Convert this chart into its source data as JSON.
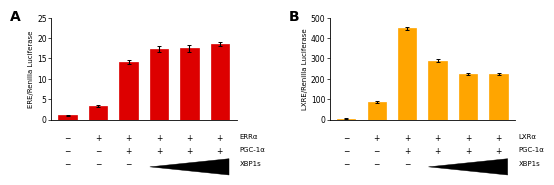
{
  "panel_A": {
    "label": "A",
    "values": [
      1.0,
      3.3,
      14.1,
      17.3,
      17.5,
      18.5
    ],
    "errors": [
      0.15,
      0.25,
      0.45,
      0.7,
      0.9,
      0.55
    ],
    "color": "#dd0000",
    "ylabel": "ERE/Renilla Luciferase",
    "ylim": [
      0,
      25
    ],
    "yticks": [
      0,
      5,
      10,
      15,
      20,
      25
    ],
    "row1": [
      "−",
      "+",
      "+",
      "+",
      "+",
      "+"
    ],
    "row2": [
      "−",
      "−",
      "+",
      "+",
      "+",
      "+"
    ],
    "row3": [
      "−",
      "−",
      "−",
      "",
      "",
      ""
    ],
    "rowlabels": [
      "ERRα",
      "PGC-1α",
      "XBP1s"
    ]
  },
  "panel_B": {
    "label": "B",
    "values": [
      4,
      85,
      448,
      290,
      225,
      222
    ],
    "errors": [
      2,
      5,
      9,
      7,
      5,
      5
    ],
    "color": "#FFA500",
    "ylabel": "LXRE/Renilla Luciferase",
    "ylim": [
      0,
      500
    ],
    "yticks": [
      0,
      100,
      200,
      300,
      400,
      500
    ],
    "row1": [
      "−",
      "+",
      "+",
      "+",
      "+",
      "+"
    ],
    "row2": [
      "−",
      "−",
      "+",
      "+",
      "+",
      "+"
    ],
    "row3": [
      "−",
      "−",
      "−",
      "",
      "",
      ""
    ],
    "rowlabels": [
      "LXRα",
      "PGC-1α",
      "XBP1s"
    ]
  }
}
